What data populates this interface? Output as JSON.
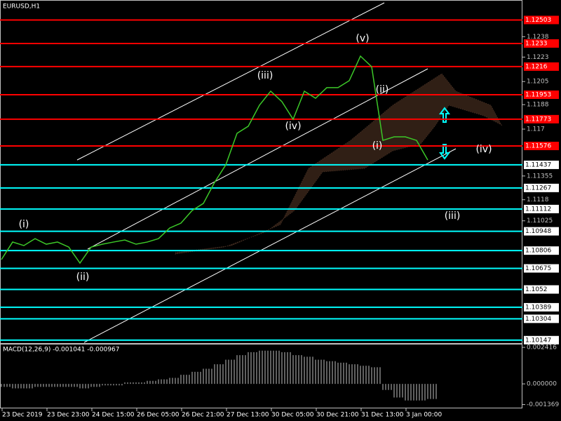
{
  "chart_data": [
    {
      "type": "line",
      "title": "EURUSD,H1",
      "series": [
        {
          "color": "#3cc828",
          "values": [
            1.1074,
            1.10869,
            1.10843,
            1.10894,
            1.10853,
            1.10869,
            1.10832,
            1.10714,
            1.10832,
            1.10853,
            1.10869,
            1.10884,
            1.10853,
            1.10869,
            1.10894,
            1.10972,
            1.11008,
            1.11101,
            1.11153,
            1.11308,
            1.11437,
            1.11669,
            1.11721,
            1.11876,
            1.11979,
            1.11902,
            1.11772,
            1.11979,
            1.11927,
            1.12005,
            1.12005,
            1.12056,
            1.12237,
            1.12159,
            1.11617,
            1.11643,
            1.11643,
            1.11617,
            1.11473
          ]
        }
      ],
      "ylim": [
        1.1012,
        1.1265
      ],
      "yticks": [
        1.1238,
        1.1223,
        1.1205,
        1.1188,
        1.117,
        1.11355,
        1.1118,
        1.11025
      ],
      "levels": [
        {
          "value": 1.12503,
          "color": "#ff0000"
        },
        {
          "value": 1.1233,
          "color": "#ff0000"
        },
        {
          "value": 1.1216,
          "color": "#ff0000"
        },
        {
          "value": 1.11953,
          "color": "#ff0000"
        },
        {
          "value": 1.11773,
          "color": "#ff0000"
        },
        {
          "value": 1.11576,
          "color": "#ff0000"
        },
        {
          "value": 1.11437,
          "color": "#00ffff"
        },
        {
          "value": 1.11267,
          "color": "#00ffff"
        },
        {
          "value": 1.11112,
          "color": "#00ffff"
        },
        {
          "value": 1.10948,
          "color": "#00ffff"
        },
        {
          "value": 1.10806,
          "color": "#00ffff"
        },
        {
          "value": 1.10675,
          "color": "#00ffff"
        },
        {
          "value": 1.1052,
          "color": "#00ffff"
        },
        {
          "value": 1.10389,
          "color": "#00ffff"
        },
        {
          "value": 1.10304,
          "color": "#00ffff"
        },
        {
          "value": 1.10147,
          "color": "#00ffff"
        }
      ],
      "annotations": [
        "(i)",
        "(ii)",
        "(iii)",
        "(iv)",
        "(v)",
        "(ii)",
        "(i)",
        "(iv)",
        "(iii)"
      ],
      "xtick_labels": [
        "23 Dec 2019",
        "23 Dec 23:00",
        "24 Dec 15:00",
        "26 Dec 05:00",
        "26 Dec 21:00",
        "27 Dec 13:00",
        "30 Dec 05:00",
        "30 Dec 21:00",
        "31 Dec 13:00",
        "3 Jan 00:00"
      ]
    },
    {
      "type": "bar",
      "title": "MACD(12,26,9) -0.001041 -0.000967",
      "color": "#c0c0c0",
      "values": [
        -0.0002,
        -0.0003,
        -0.0003,
        -0.0002,
        -0.0002,
        -0.0002,
        -0.0002,
        -0.0003,
        -0.0002,
        -0.0001,
        -0.0001,
        0.0001,
        0.0001,
        0.0002,
        0.0003,
        0.0004,
        0.0006,
        0.0008,
        0.001,
        0.0013,
        0.0016,
        0.0019,
        0.0021,
        0.0022,
        0.0022,
        0.0021,
        0.0019,
        0.0018,
        0.0016,
        0.0015,
        0.0014,
        0.0013,
        0.0012,
        0.0011,
        -0.0004,
        -0.0009,
        -0.0011,
        -0.0011,
        -0.001
      ],
      "ylim": [
        -0.00162,
        0.00265
      ],
      "yticks": [
        0.002416,
        {
          "value": 0,
          "label": "0.000000"
        },
        -0.001369
      ]
    }
  ]
}
